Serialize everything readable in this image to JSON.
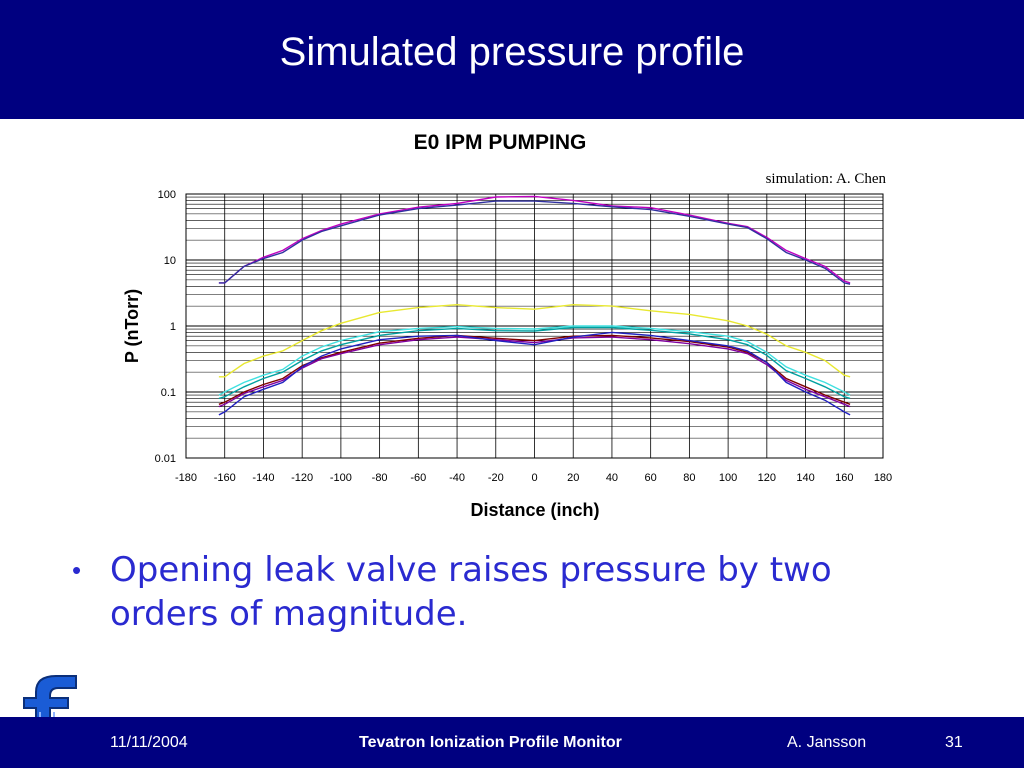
{
  "slide": {
    "title": "Simulated pressure profile",
    "bullet": "Opening leak valve raises pressure by two orders of magnitude."
  },
  "footer": {
    "date": "11/11/2004",
    "title": "Tevatron Ionization Profile Monitor",
    "author": "A. Jansson",
    "page": "31"
  },
  "logo": {
    "letter": "f"
  },
  "colors": {
    "header_bg": "#000080",
    "bullet_text": "#2a2ad0",
    "logo": "#1a5cd6"
  },
  "chart_data": {
    "type": "line",
    "title": "E0 IPM PUMPING",
    "annotation": "simulation: A. Chen",
    "xlabel": "Distance (inch)",
    "ylabel": "P (nTorr)",
    "xlim": [
      -180,
      180
    ],
    "ylim": [
      0.01,
      100
    ],
    "yscale": "log",
    "xticks": [
      -180,
      -160,
      -140,
      -120,
      -100,
      -80,
      -60,
      -40,
      -20,
      0,
      20,
      40,
      60,
      80,
      100,
      120,
      140,
      160,
      180
    ],
    "ytick_labels": [
      "0.01",
      "0.1",
      "1",
      "10",
      "100"
    ],
    "grid": true,
    "legend": "none",
    "series": [
      {
        "color": "#c000c0",
        "x": [
          -163,
          -160,
          -150,
          -140,
          -130,
          -120,
          -110,
          -100,
          -80,
          -60,
          -40,
          -20,
          0,
          20,
          40,
          60,
          80,
          100,
          110,
          120,
          130,
          140,
          150,
          160,
          163
        ],
        "y": [
          4.5,
          4.5,
          8,
          11,
          14,
          21,
          28,
          35,
          50,
          63,
          72,
          90,
          92,
          80,
          66,
          62,
          48,
          36,
          32,
          22,
          14,
          10.5,
          8,
          4.8,
          4.5
        ]
      },
      {
        "color": "#3030a0",
        "x": [
          -163,
          -160,
          -150,
          -140,
          -130,
          -120,
          -110,
          -100,
          -80,
          -60,
          -40,
          -20,
          0,
          20,
          40,
          60,
          80,
          100,
          110,
          120,
          130,
          140,
          150,
          160,
          163
        ],
        "y": [
          4.5,
          4.5,
          8,
          10.5,
          13,
          20,
          27,
          33,
          48,
          60,
          68,
          78,
          78,
          72,
          64,
          58,
          46,
          35,
          31,
          21,
          13,
          10,
          7.5,
          4.5,
          4.3
        ]
      },
      {
        "color": "#e8e830",
        "x": [
          -163,
          -160,
          -150,
          -140,
          -130,
          -120,
          -110,
          -100,
          -80,
          -60,
          -40,
          -20,
          0,
          20,
          40,
          60,
          80,
          100,
          110,
          120,
          130,
          140,
          150,
          160,
          163
        ],
        "y": [
          0.17,
          0.17,
          0.27,
          0.35,
          0.42,
          0.6,
          0.85,
          1.1,
          1.6,
          1.9,
          2.1,
          1.9,
          1.8,
          2.1,
          2.0,
          1.7,
          1.5,
          1.2,
          1.0,
          0.75,
          0.5,
          0.4,
          0.3,
          0.18,
          0.17
        ]
      },
      {
        "color": "#40e0e0",
        "x": [
          -163,
          -160,
          -150,
          -140,
          -130,
          -120,
          -110,
          -100,
          -80,
          -60,
          -40,
          -20,
          0,
          20,
          40,
          60,
          80,
          100,
          110,
          120,
          130,
          140,
          150,
          160,
          163
        ],
        "y": [
          0.09,
          0.1,
          0.14,
          0.18,
          0.22,
          0.35,
          0.48,
          0.6,
          0.82,
          0.92,
          0.98,
          0.92,
          0.9,
          1.0,
          1.0,
          0.92,
          0.82,
          0.7,
          0.58,
          0.4,
          0.24,
          0.18,
          0.14,
          0.1,
          0.09
        ]
      },
      {
        "color": "#00a0a0",
        "x": [
          -163,
          -160,
          -150,
          -140,
          -130,
          -120,
          -110,
          -100,
          -80,
          -60,
          -40,
          -20,
          0,
          20,
          40,
          60,
          80,
          100,
          110,
          120,
          130,
          140,
          150,
          160,
          163
        ],
        "y": [
          0.08,
          0.085,
          0.12,
          0.16,
          0.2,
          0.3,
          0.42,
          0.52,
          0.72,
          0.85,
          0.92,
          0.85,
          0.84,
          0.95,
          0.95,
          0.86,
          0.76,
          0.62,
          0.52,
          0.36,
          0.21,
          0.16,
          0.12,
          0.085,
          0.08
        ]
      },
      {
        "color": "#800000",
        "x": [
          -163,
          -160,
          -150,
          -140,
          -130,
          -120,
          -110,
          -100,
          -80,
          -60,
          -40,
          -20,
          0,
          20,
          40,
          60,
          80,
          100,
          110,
          120,
          130,
          140,
          150,
          160,
          163
        ],
        "y": [
          0.065,
          0.07,
          0.1,
          0.13,
          0.16,
          0.25,
          0.33,
          0.4,
          0.55,
          0.65,
          0.72,
          0.65,
          0.6,
          0.7,
          0.72,
          0.66,
          0.58,
          0.48,
          0.4,
          0.28,
          0.16,
          0.12,
          0.09,
          0.07,
          0.065
        ]
      },
      {
        "color": "#8000a0",
        "x": [
          -163,
          -160,
          -150,
          -140,
          -130,
          -120,
          -110,
          -100,
          -80,
          -60,
          -40,
          -20,
          0,
          20,
          40,
          60,
          80,
          100,
          110,
          120,
          130,
          140,
          150,
          160,
          163
        ],
        "y": [
          0.06,
          0.065,
          0.095,
          0.12,
          0.15,
          0.23,
          0.32,
          0.38,
          0.52,
          0.62,
          0.68,
          0.62,
          0.56,
          0.66,
          0.68,
          0.62,
          0.54,
          0.45,
          0.38,
          0.26,
          0.15,
          0.11,
          0.085,
          0.065,
          0.06
        ]
      },
      {
        "color": "#2020c0",
        "x": [
          -163,
          -160,
          -150,
          -140,
          -130,
          -120,
          -110,
          -100,
          -80,
          -60,
          -40,
          -20,
          0,
          20,
          40,
          60,
          80,
          100,
          110,
          120,
          130,
          140,
          150,
          160,
          163
        ],
        "y": [
          0.045,
          0.05,
          0.085,
          0.11,
          0.14,
          0.24,
          0.35,
          0.45,
          0.62,
          0.7,
          0.72,
          0.6,
          0.52,
          0.68,
          0.8,
          0.72,
          0.6,
          0.5,
          0.42,
          0.28,
          0.14,
          0.1,
          0.075,
          0.05,
          0.045
        ]
      }
    ]
  }
}
